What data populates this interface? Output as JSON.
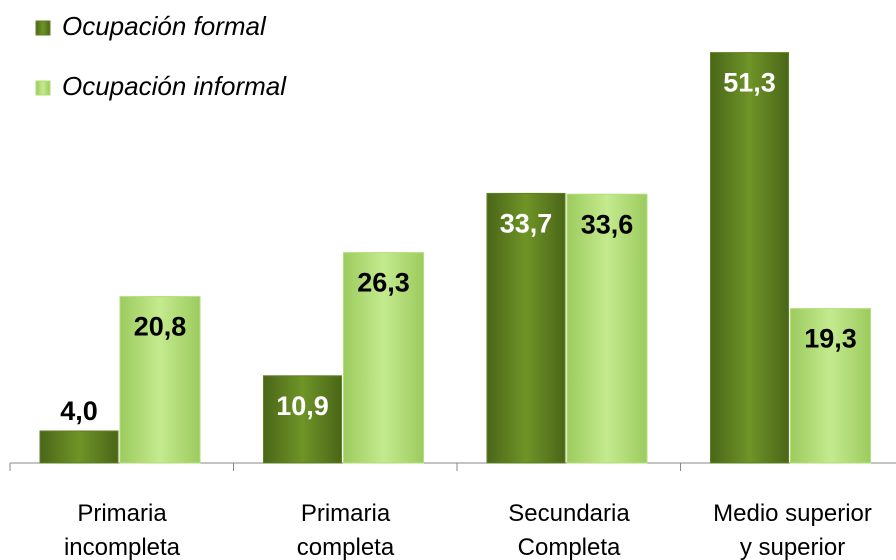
{
  "chart_data": {
    "type": "bar",
    "categories": [
      "Primaria\nincompleta",
      "Primaria\ncompleta",
      "Secundaria\nCompleta",
      "Medio superior\ny superior"
    ],
    "series": [
      {
        "name": "Ocupación formal",
        "color": "#5f8021",
        "values": [
          4.0,
          10.9,
          33.7,
          51.3
        ],
        "value_labels": [
          "4,0",
          "10,9",
          "33,7",
          "51,3"
        ]
      },
      {
        "name": "Ocupación informal",
        "color": "#b3de7a",
        "values": [
          20.8,
          26.3,
          33.6,
          19.3
        ],
        "value_labels": [
          "20,8",
          "26,3",
          "33,6",
          "19,3"
        ]
      }
    ],
    "ylim": [
      0,
      55
    ],
    "legend": "top-left"
  }
}
